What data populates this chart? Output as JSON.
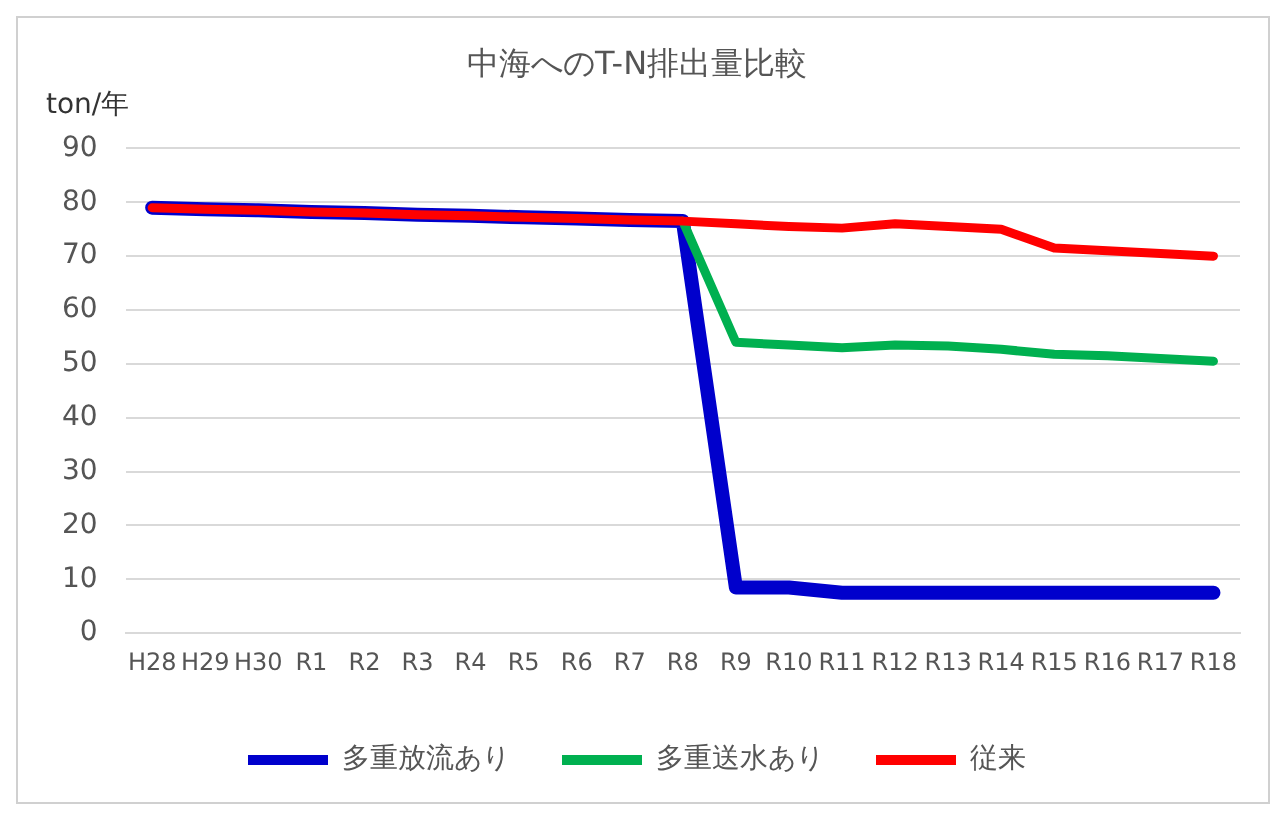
{
  "chart_data": {
    "type": "line",
    "title": "中海へのT-N排出量比較",
    "ylabel": "ton/年",
    "categories": [
      "H28",
      "H29",
      "H30",
      "R1",
      "R2",
      "R3",
      "R4",
      "R5",
      "R6",
      "R7",
      "R8",
      "R9",
      "R10",
      "R11",
      "R12",
      "R13",
      "R14",
      "R15",
      "R16",
      "R17",
      "R18"
    ],
    "series": [
      {
        "name": "多重放流あり",
        "color": "#0000cc",
        "values": [
          79,
          78.7,
          78.5,
          78.2,
          78,
          77.7,
          77.5,
          77.2,
          77,
          76.7,
          76.5,
          8.5,
          8.5,
          7.5,
          7.5,
          7.5,
          7.5,
          7.5,
          7.5,
          7.5,
          7.5
        ]
      },
      {
        "name": "多重送水あり",
        "color": "#00b050",
        "values": [
          null,
          null,
          null,
          null,
          null,
          null,
          null,
          null,
          null,
          null,
          76.5,
          54,
          53.5,
          53,
          53.5,
          53.3,
          52.7,
          51.8,
          51.5,
          51,
          50.5
        ]
      },
      {
        "name": "従来",
        "color": "#ff0000",
        "values": [
          79,
          78.7,
          78.5,
          78.2,
          78,
          77.7,
          77.5,
          77.2,
          77,
          76.7,
          76.5,
          76,
          75.5,
          75.2,
          76,
          75.5,
          75,
          71.5,
          71,
          70.5,
          70
        ]
      }
    ],
    "ylim": [
      0,
      90
    ],
    "yticks": [
      0,
      10,
      20,
      30,
      40,
      50,
      60,
      70,
      80,
      90
    ],
    "grid": "y",
    "legend": "bottom",
    "marker": "none",
    "line_style": "solid"
  }
}
